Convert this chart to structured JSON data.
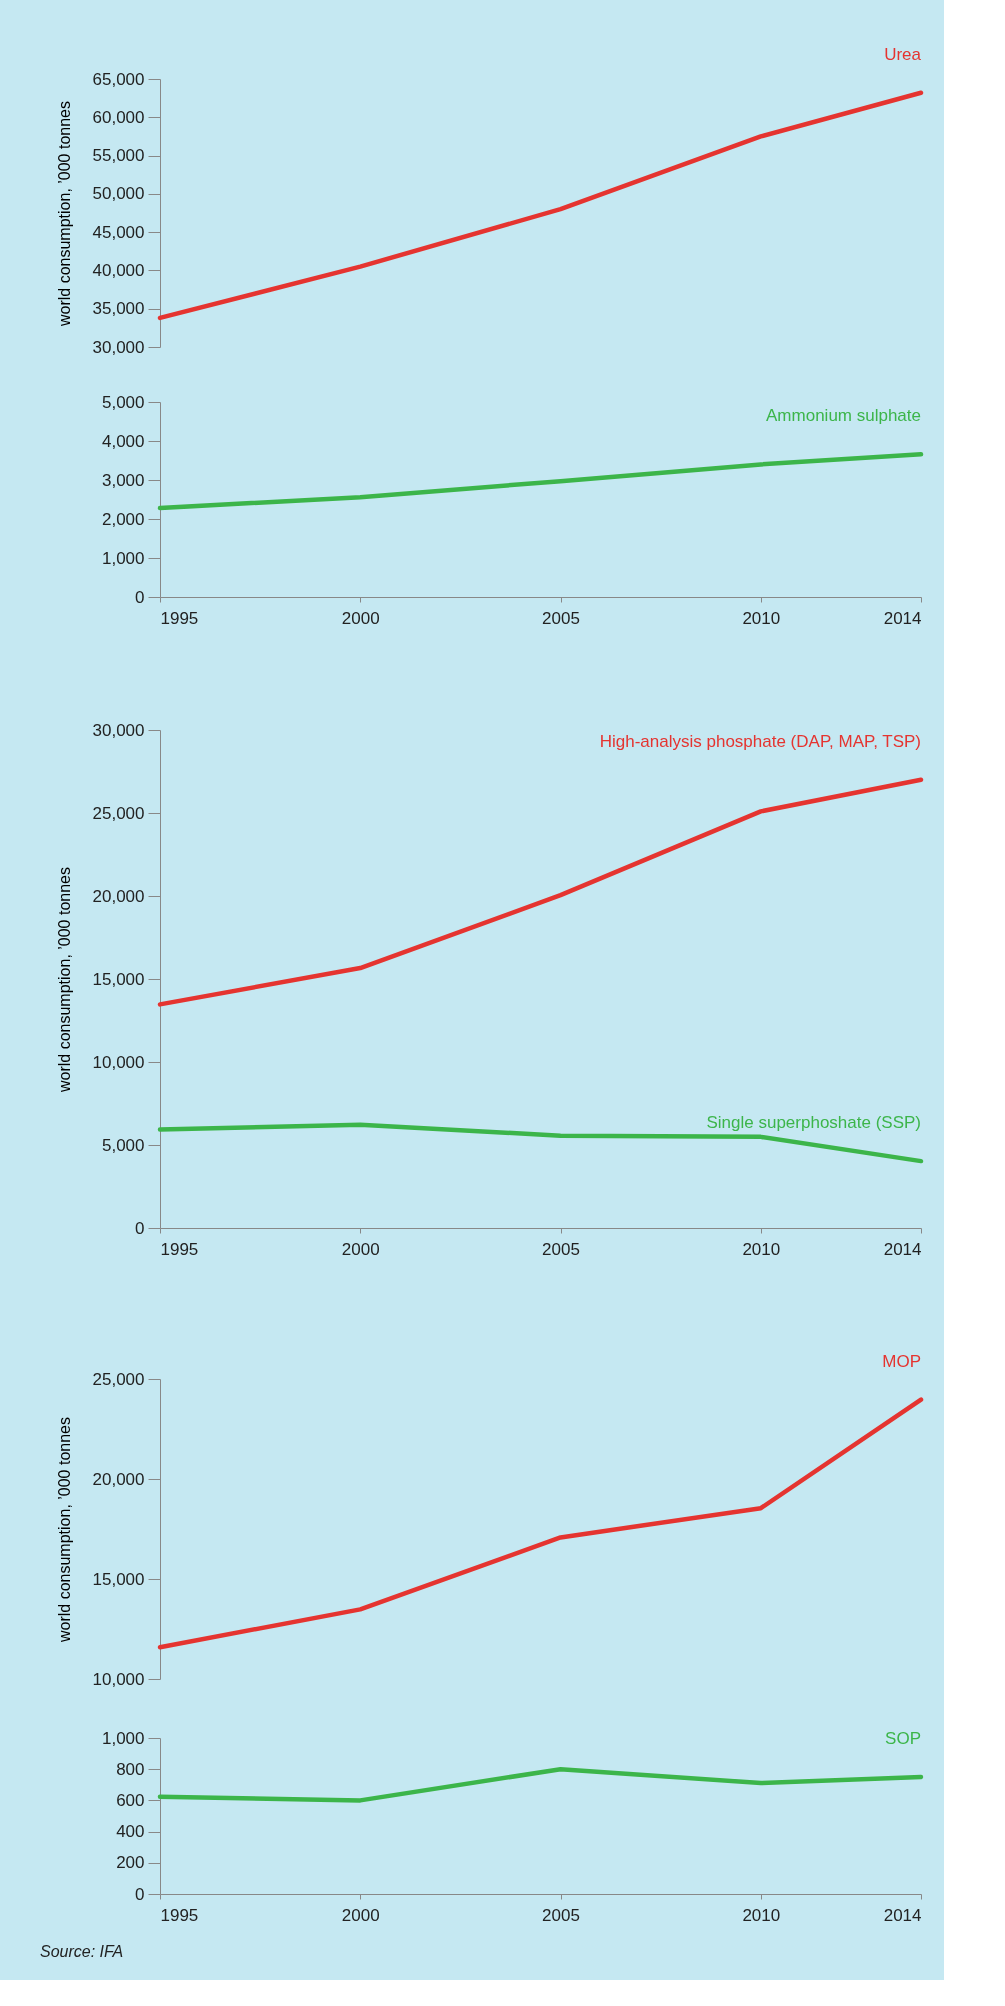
{
  "chart_data": [
    {
      "type": "line",
      "ylabel": "world consumption, ’000 tonnes",
      "x": [
        1995,
        2000,
        2005,
        2010,
        2014
      ],
      "xlim": [
        1995,
        2014
      ],
      "xticks": [
        1995,
        2000,
        2005,
        2010,
        2014
      ],
      "ylim": [
        30000,
        65000
      ],
      "yticks": [
        {
          "value": 30000,
          "label": "30,000"
        },
        {
          "value": 35000,
          "label": "35,000"
        },
        {
          "value": 40000,
          "label": "40,000"
        },
        {
          "value": 45000,
          "label": "45,000"
        },
        {
          "value": 50000,
          "label": "50,000"
        },
        {
          "value": 55000,
          "label": "55,000"
        },
        {
          "value": 60000,
          "label": "60,000"
        },
        {
          "value": 65000,
          "label": "65,000"
        }
      ],
      "tick_labels": "y",
      "grid": false,
      "legend": false,
      "series": [
        {
          "name": "Urea",
          "color": "#e53430",
          "values": [
            33800,
            40500,
            48000,
            57500,
            63200
          ]
        }
      ]
    },
    {
      "type": "line",
      "x": [
        1995,
        2000,
        2005,
        2010,
        2014
      ],
      "xlim": [
        1995,
        2014
      ],
      "xticks": [
        1995,
        2000,
        2005,
        2010,
        2014
      ],
      "ylim": [
        0,
        5000
      ],
      "yticks": [
        0,
        {
          "value": 1000,
          "label": "1,000"
        },
        {
          "value": 2000,
          "label": "2,000"
        },
        {
          "value": 3000,
          "label": "3,000"
        },
        {
          "value": 4000,
          "label": "4,000"
        },
        {
          "value": 5000,
          "label": "5,000"
        }
      ],
      "grid": false,
      "legend": false,
      "series": [
        {
          "name": "Ammonium sulphate",
          "color": "#3cb54a",
          "values": [
            2280,
            2560,
            2970,
            3400,
            3660
          ]
        }
      ]
    },
    {
      "type": "line",
      "ylabel": "world consumption, ’000 tonnes",
      "x": [
        1995,
        2000,
        2005,
        2010,
        2014
      ],
      "xlim": [
        1995,
        2014
      ],
      "xticks": [
        1995,
        2000,
        2005,
        2010,
        2014
      ],
      "ylim": [
        0,
        30000
      ],
      "yticks": [
        0,
        {
          "value": 5000,
          "label": "5,000"
        },
        {
          "value": 10000,
          "label": "10,000"
        },
        {
          "value": 15000,
          "label": "15,000"
        },
        {
          "value": 20000,
          "label": "20,000"
        },
        {
          "value": 25000,
          "label": "25,000"
        },
        {
          "value": 30000,
          "label": "30,000"
        }
      ],
      "grid": false,
      "legend": false,
      "series": [
        {
          "name": "High-analysis phosphate (DAP, MAP, TSP)",
          "color": "#e53430",
          "values": [
            13470,
            15660,
            20050,
            25100,
            27000
          ]
        },
        {
          "name": "Single superphoshate (SSP)",
          "color": "#3cb54a",
          "values": [
            5930,
            6220,
            5560,
            5490,
            4030
          ]
        }
      ]
    },
    {
      "type": "line",
      "ylabel": "world consumption, ’000 tonnes",
      "x": [
        1995,
        2000,
        2005,
        2010,
        2014
      ],
      "xlim": [
        1995,
        2014
      ],
      "xticks": [
        1995,
        2000,
        2005,
        2010,
        2014
      ],
      "ylim": [
        10000,
        25000
      ],
      "yticks": [
        {
          "value": 10000,
          "label": "10,000"
        },
        {
          "value": 15000,
          "label": "15,000"
        },
        {
          "value": 20000,
          "label": "20,000"
        },
        {
          "value": 25000,
          "label": "25,000"
        }
      ],
      "tick_labels": "y",
      "grid": false,
      "legend": false,
      "series": [
        {
          "name": "MOP",
          "color": "#e53430",
          "values": [
            11590,
            13480,
            17080,
            18540,
            23970
          ]
        }
      ]
    },
    {
      "type": "line",
      "x": [
        1995,
        2000,
        2005,
        2010,
        2014
      ],
      "xlim": [
        1995,
        2014
      ],
      "xticks": [
        1995,
        2000,
        2005,
        2010,
        2014
      ],
      "ylim": [
        0,
        1000
      ],
      "yticks": [
        0,
        200,
        400,
        600,
        800,
        {
          "value": 1000,
          "label": "1,000"
        }
      ],
      "grid": false,
      "legend": false,
      "annotations": [
        "Source: IFA"
      ],
      "series": [
        {
          "name": "SOP",
          "color": "#3cb54a",
          "values": [
            624,
            600,
            800,
            711,
            750
          ]
        }
      ]
    }
  ]
}
